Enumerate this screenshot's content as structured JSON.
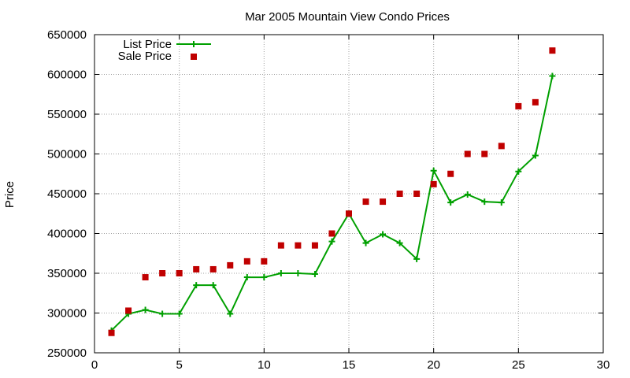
{
  "chart_data": {
    "type": "line",
    "title": "Mar 2005 Mountain View Condo Prices",
    "xlabel": "",
    "ylabel": "Price",
    "xlim": [
      0,
      30
    ],
    "ylim": [
      250000,
      650000
    ],
    "x_ticks": [
      0,
      5,
      10,
      15,
      20,
      25,
      30
    ],
    "y_ticks": [
      250000,
      300000,
      350000,
      400000,
      450000,
      500000,
      550000,
      600000,
      650000
    ],
    "grid": true,
    "legend_position": "top-left",
    "series": [
      {
        "name": "List Price",
        "style": "line-plus",
        "color": "#00a000",
        "x": [
          1,
          2,
          3,
          4,
          5,
          6,
          7,
          8,
          9,
          10,
          11,
          12,
          13,
          14,
          15,
          16,
          17,
          18,
          19,
          20,
          21,
          22,
          23,
          24,
          25,
          26,
          27
        ],
        "y": [
          278000,
          299000,
          304000,
          299000,
          299000,
          335000,
          335000,
          299000,
          345000,
          345000,
          350000,
          350000,
          349000,
          390000,
          425000,
          388000,
          399000,
          388000,
          368000,
          479000,
          439000,
          449000,
          440000,
          439000,
          478000,
          498000,
          598000
        ]
      },
      {
        "name": "Sale Price",
        "style": "square",
        "color": "#c00000",
        "x": [
          1,
          2,
          3,
          4,
          5,
          6,
          7,
          8,
          9,
          10,
          11,
          12,
          13,
          14,
          15,
          16,
          17,
          18,
          19,
          20,
          21,
          22,
          23,
          24,
          25,
          26,
          27
        ],
        "y": [
          275000,
          303000,
          345000,
          350000,
          350000,
          355000,
          355000,
          360000,
          365000,
          365000,
          385000,
          385000,
          385000,
          400000,
          425000,
          440000,
          440000,
          450000,
          450000,
          462000,
          475000,
          500000,
          500000,
          510000,
          560000,
          565000,
          630000
        ]
      }
    ]
  }
}
